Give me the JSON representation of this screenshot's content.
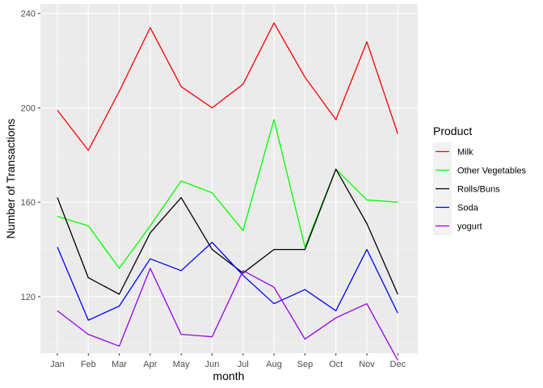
{
  "chart_data": {
    "type": "line",
    "xlabel": "month",
    "ylabel": "Number of Transactions",
    "categories": [
      "Jan",
      "Feb",
      "Mar",
      "Apr",
      "May",
      "Jun",
      "Jul",
      "Aug",
      "Sep",
      "Oct",
      "Nov",
      "Dec"
    ],
    "ylim": [
      96,
      244
    ],
    "yticks": [
      120,
      160,
      200,
      240
    ],
    "grid": true,
    "legend": {
      "title": "Product",
      "position": "right"
    },
    "series": [
      {
        "name": "Milk",
        "color": "#ff0000",
        "values": [
          199,
          182,
          207,
          234,
          209,
          200,
          210,
          236,
          213,
          195,
          228,
          189
        ]
      },
      {
        "name": "Other Vegetables",
        "color": "#00ff00",
        "values": [
          154,
          150,
          132,
          150,
          169,
          164,
          148,
          195,
          141,
          174,
          161,
          160
        ]
      },
      {
        "name": "Rolls/Buns",
        "color": "#000000",
        "values": [
          162,
          128,
          121,
          147,
          162,
          140,
          130,
          140,
          140,
          174,
          151,
          121
        ]
      },
      {
        "name": "Soda",
        "color": "#0000ff",
        "values": [
          141,
          110,
          116,
          136,
          131,
          143,
          129,
          117,
          123,
          114,
          140,
          113
        ]
      },
      {
        "name": "yogurt",
        "color": "#9900ee",
        "values": [
          114,
          104,
          99,
          132,
          104,
          103,
          131,
          124,
          102,
          111,
          117,
          93
        ]
      }
    ]
  }
}
